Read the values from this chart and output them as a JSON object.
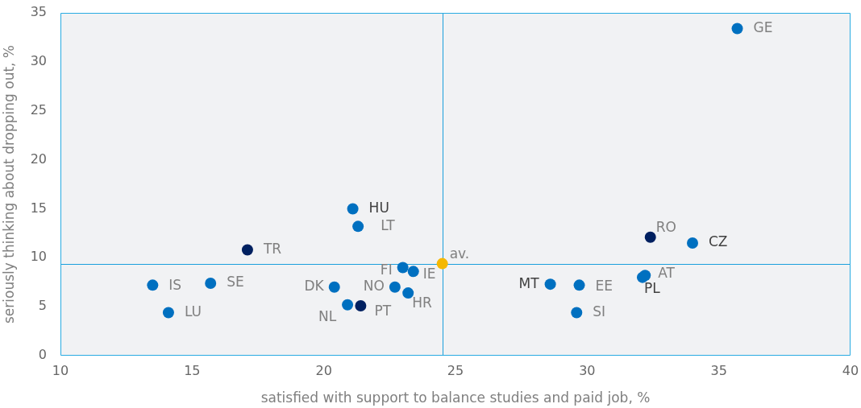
{
  "chart_data": {
    "type": "scatter",
    "xlabel": "satisfied with support to balance studies and paid job, %",
    "ylabel": "seriously thinking about dropping out, %",
    "x": [
      35.7,
      21.1,
      21.3,
      17.1,
      32.4,
      34.0,
      13.5,
      15.7,
      14.1,
      20.4,
      20.9,
      21.4,
      23.0,
      23.4,
      22.7,
      23.2,
      24.5,
      28.6,
      29.7,
      29.6,
      32.1,
      32.2
    ],
    "values": [
      33.4,
      15.0,
      13.2,
      10.8,
      12.1,
      11.5,
      7.2,
      7.4,
      4.4,
      7.0,
      5.2,
      5.1,
      9.0,
      8.6,
      7.0,
      6.4,
      9.4,
      7.3,
      7.2,
      4.4,
      8.0,
      8.2
    ],
    "colors": [
      "#0070c0",
      "#0070c0",
      "#0070c0",
      "#002060",
      "#002060",
      "#0070c0",
      "#0070c0",
      "#0070c0",
      "#0070c0",
      "#0070c0",
      "#0070c0",
      "#002060",
      "#0070c0",
      "#0070c0",
      "#0070c0",
      "#0070c0",
      "#f5b800",
      "#0070c0",
      "#0070c0",
      "#0070c0",
      "#0070c0",
      "#0070c0"
    ],
    "annotations": [
      {
        "text": "GE",
        "x": 35.7,
        "y": 33.4
      },
      {
        "text": "HU",
        "x": 21.1,
        "y": 15.0
      },
      {
        "text": "LT",
        "x": 21.3,
        "y": 13.2
      },
      {
        "text": "TR",
        "x": 17.1,
        "y": 10.8
      },
      {
        "text": "RO",
        "x": 32.4,
        "y": 12.1
      },
      {
        "text": "CZ",
        "x": 34.0,
        "y": 11.5
      },
      {
        "text": "IS",
        "x": 13.5,
        "y": 7.2
      },
      {
        "text": "SE",
        "x": 15.7,
        "y": 7.4
      },
      {
        "text": "LU",
        "x": 14.1,
        "y": 4.4
      },
      {
        "text": "DK",
        "x": 20.4,
        "y": 7.0
      },
      {
        "text": "NL",
        "x": 20.9,
        "y": 5.2
      },
      {
        "text": "PT",
        "x": 21.4,
        "y": 5.1
      },
      {
        "text": "FI",
        "x": 23.0,
        "y": 9.0
      },
      {
        "text": "IE",
        "x": 23.4,
        "y": 8.6
      },
      {
        "text": "NO",
        "x": 22.7,
        "y": 7.0
      },
      {
        "text": "HR",
        "x": 23.2,
        "y": 6.4
      },
      {
        "text": "av.",
        "x": 24.5,
        "y": 9.4
      },
      {
        "text": "MT",
        "x": 28.6,
        "y": 7.3
      },
      {
        "text": "EE",
        "x": 29.7,
        "y": 7.2
      },
      {
        "text": "SI",
        "x": 29.6,
        "y": 4.4
      },
      {
        "text": "PL",
        "x": 32.1,
        "y": 8.0
      },
      {
        "text": "AT",
        "x": 32.2,
        "y": 8.2
      }
    ],
    "ref_lines": [
      {
        "axis": "x",
        "value": 24.5,
        "color": "#1a9fdc"
      },
      {
        "axis": "y",
        "value": 9.4,
        "color": "#1a9fdc"
      }
    ],
    "xlim": [
      10,
      40
    ],
    "xticks": [
      10,
      15,
      20,
      25,
      30,
      35,
      40
    ],
    "ylim": [
      0,
      35
    ],
    "yticks": [
      0,
      5,
      10,
      15,
      20,
      25,
      30,
      35
    ],
    "marker": "circle"
  }
}
